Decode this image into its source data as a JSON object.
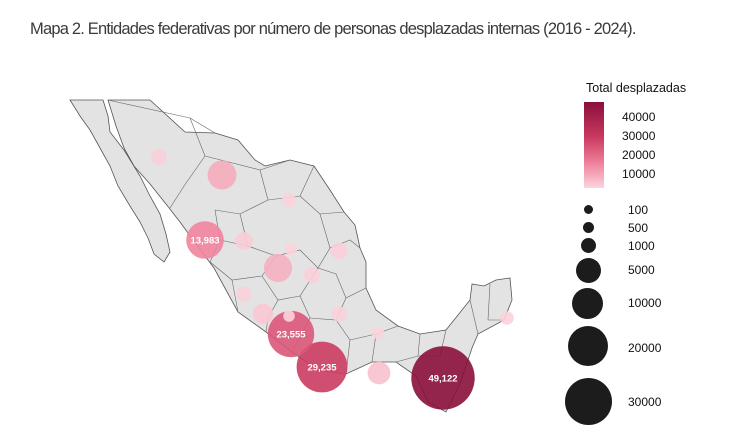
{
  "title": "Mapa 2. Entidades federativas por número de personas desplazadas internas (2016 - 2024).",
  "legend": {
    "color_title": "Total desplazadas",
    "color_ticks": [
      "40000",
      "30000",
      "20000",
      "10000"
    ],
    "color_scale": [
      "#fbd5de",
      "#ee7e98",
      "#c9385f",
      "#8a0f3c"
    ],
    "size_ticks": [
      "100",
      "500",
      "1000",
      "5000",
      "10000",
      "20000",
      "30000"
    ]
  },
  "map": {
    "land_color": "#e3e3e3",
    "border_color": "#555555",
    "bubbles": [
      {
        "label": "49,122",
        "value": 49122
      },
      {
        "label": "29,235",
        "value": 29235
      },
      {
        "label": "23,555",
        "value": 23555
      },
      {
        "label": "13,983",
        "value": 13983
      },
      {
        "label": "",
        "value": 7000
      },
      {
        "label": "",
        "value": 6500
      },
      {
        "label": "",
        "value": 3500
      },
      {
        "label": "",
        "value": 2500
      },
      {
        "label": "",
        "value": 1500
      },
      {
        "label": "",
        "value": 1200
      },
      {
        "label": "",
        "value": 1000
      },
      {
        "label": "",
        "value": 1000
      },
      {
        "label": "",
        "value": 800
      },
      {
        "label": "",
        "value": 800
      },
      {
        "label": "",
        "value": 600
      },
      {
        "label": "",
        "value": 500
      },
      {
        "label": "",
        "value": 300
      },
      {
        "label": "",
        "value": 300
      },
      {
        "label": "",
        "value": 200
      }
    ]
  }
}
